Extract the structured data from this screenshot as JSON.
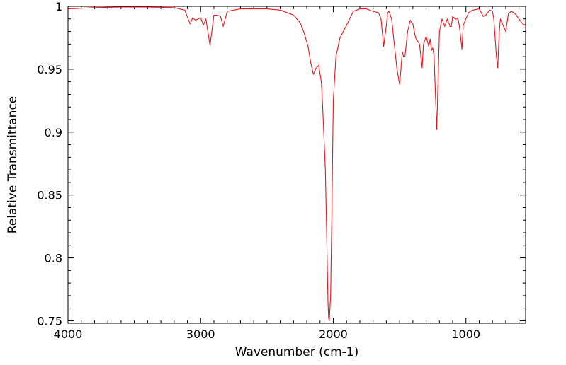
{
  "chart_data": {
    "type": "line",
    "title": "",
    "xlabel": "Wavenumber (cm-1)",
    "ylabel": "Relative Transmittance",
    "xlim": [
      4000,
      550
    ],
    "ylim": [
      0.748,
      1.0
    ],
    "x_reversed": true,
    "x_ticks": [
      4000,
      3000,
      2000,
      1000
    ],
    "x_tick_labels": [
      "4000",
      "3000",
      "2000",
      "1000"
    ],
    "y_ticks": [
      0.75,
      0.8,
      0.85,
      0.9,
      0.95,
      1.0
    ],
    "y_tick_labels": [
      "0.75",
      "0.8",
      "0.85",
      "0.9",
      "0.95",
      "1"
    ],
    "grid": false,
    "series": [
      {
        "name": "spectrum",
        "color": "#e8171c",
        "x": [
          4000,
          3800,
          3600,
          3400,
          3200,
          3120,
          3080,
          3060,
          3040,
          3000,
          2980,
          2960,
          2930,
          2900,
          2880,
          2850,
          2830,
          2800,
          2700,
          2600,
          2500,
          2400,
          2300,
          2250,
          2220,
          2190,
          2170,
          2150,
          2130,
          2110,
          2090,
          2080,
          2060,
          2050,
          2045,
          2040,
          2035,
          2030,
          2020,
          2010,
          2000,
          1980,
          1950,
          1900,
          1850,
          1800,
          1750,
          1700,
          1660,
          1640,
          1620,
          1600,
          1590,
          1580,
          1560,
          1540,
          1520,
          1500,
          1490,
          1480,
          1470,
          1460,
          1440,
          1420,
          1400,
          1380,
          1350,
          1330,
          1320,
          1300,
          1280,
          1270,
          1260,
          1250,
          1240,
          1230,
          1220,
          1210,
          1200,
          1180,
          1160,
          1140,
          1120,
          1110,
          1100,
          1080,
          1060,
          1050,
          1030,
          1020,
          1000,
          980,
          950,
          900,
          870,
          850,
          820,
          800,
          790,
          770,
          760,
          750,
          740,
          720,
          700,
          680,
          660,
          640,
          620,
          600,
          580,
          560,
          550
        ],
        "y": [
          0.998,
          0.999,
          0.9995,
          0.9995,
          0.999,
          0.997,
          0.986,
          0.991,
          0.989,
          0.991,
          0.985,
          0.99,
          0.969,
          0.993,
          0.993,
          0.992,
          0.984,
          0.996,
          0.998,
          0.998,
          0.998,
          0.997,
          0.993,
          0.987,
          0.979,
          0.968,
          0.955,
          0.946,
          0.951,
          0.953,
          0.94,
          0.92,
          0.87,
          0.82,
          0.79,
          0.765,
          0.752,
          0.75,
          0.77,
          0.84,
          0.925,
          0.96,
          0.975,
          0.985,
          0.996,
          0.998,
          0.998,
          0.996,
          0.995,
          0.99,
          0.968,
          0.985,
          0.995,
          0.996,
          0.99,
          0.97,
          0.95,
          0.938,
          0.95,
          0.964,
          0.96,
          0.96,
          0.98,
          0.989,
          0.986,
          0.975,
          0.97,
          0.951,
          0.97,
          0.976,
          0.968,
          0.974,
          0.965,
          0.967,
          0.96,
          0.93,
          0.902,
          0.94,
          0.98,
          0.99,
          0.984,
          0.99,
          0.984,
          0.984,
          0.992,
          0.99,
          0.99,
          0.985,
          0.966,
          0.985,
          0.99,
          0.995,
          0.997,
          0.998,
          0.992,
          0.993,
          0.997,
          0.996,
          0.99,
          0.96,
          0.951,
          0.978,
          0.99,
          0.985,
          0.98,
          0.994,
          0.996,
          0.995,
          0.993,
          0.99,
          0.987,
          0.985,
          0.986
        ]
      }
    ]
  }
}
